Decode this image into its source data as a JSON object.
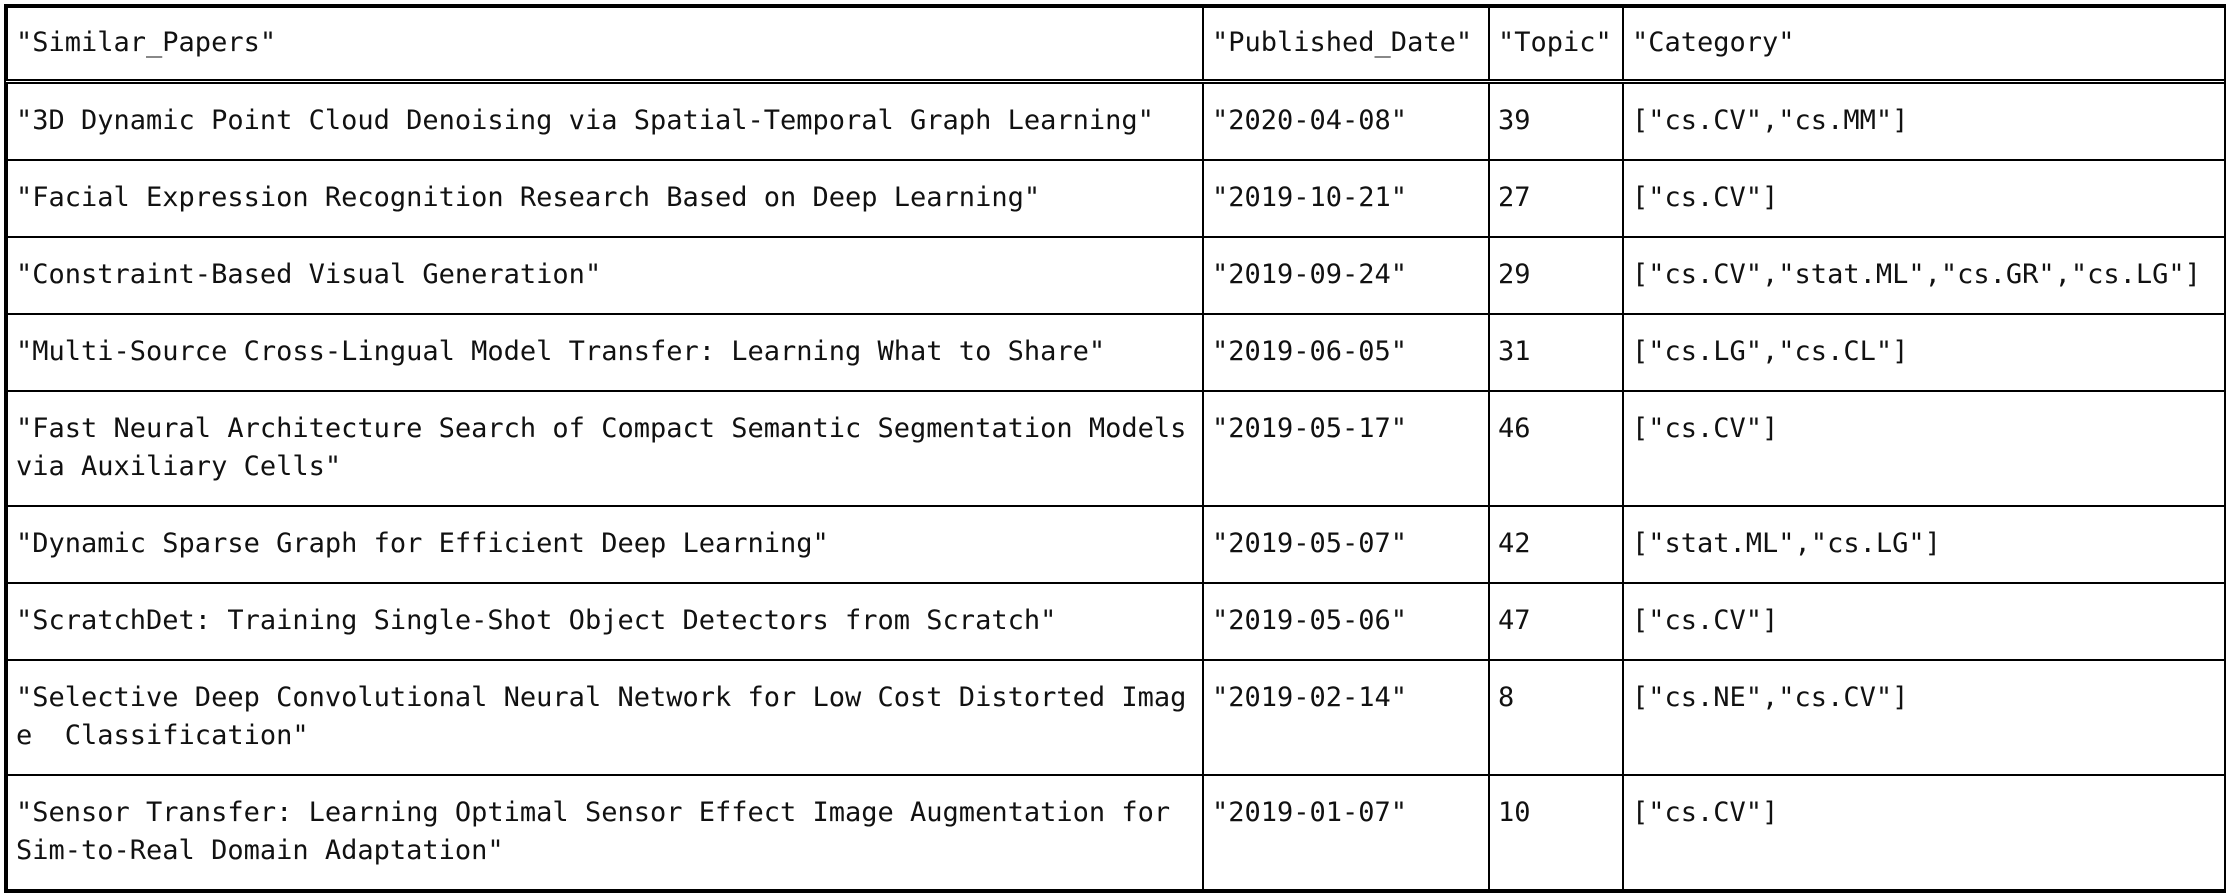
{
  "columns": [
    "\"Similar_Papers\"",
    "\"Published_Date\"",
    "\"Topic\"",
    "\"Category\""
  ],
  "rows": [
    [
      "\"3D Dynamic Point Cloud Denoising via Spatial-Temporal Graph Learning\"",
      "\"2020-04-08\"",
      "39",
      "[\"cs.CV\",\"cs.MM\"]"
    ],
    [
      "\"Facial Expression Recognition Research Based on Deep Learning\"",
      "\"2019-10-21\"",
      "27",
      "[\"cs.CV\"]"
    ],
    [
      "\"Constraint-Based Visual Generation\"",
      "\"2019-09-24\"",
      "29",
      "[\"cs.CV\",\"stat.ML\",\"cs.GR\",\"cs.LG\"]"
    ],
    [
      "\"Multi-Source Cross-Lingual Model Transfer: Learning What to Share\"",
      "\"2019-06-05\"",
      "31",
      "[\"cs.LG\",\"cs.CL\"]"
    ],
    [
      "\"Fast Neural Architecture Search of Compact Semantic Segmentation Models  via Auxiliary Cells\"",
      "\"2019-05-17\"",
      "46",
      "[\"cs.CV\"]"
    ],
    [
      "\"Dynamic Sparse Graph for Efficient Deep Learning\"",
      "\"2019-05-07\"",
      "42",
      "[\"stat.ML\",\"cs.LG\"]"
    ],
    [
      "\"ScratchDet: Training Single-Shot Object Detectors from Scratch\"",
      "\"2019-05-06\"",
      "47",
      "[\"cs.CV\"]"
    ],
    [
      "\"Selective Deep Convolutional Neural Network for Low Cost Distorted Image  Classification\"",
      "\"2019-02-14\"",
      "8",
      "[\"cs.NE\",\"cs.CV\"]"
    ],
    [
      "\"Sensor Transfer: Learning Optimal Sensor Effect Image Augmentation for  Sim-to-Real Domain Adaptation\"",
      "\"2019-01-07\"",
      "10",
      "[\"cs.CV\"]"
    ]
  ]
}
